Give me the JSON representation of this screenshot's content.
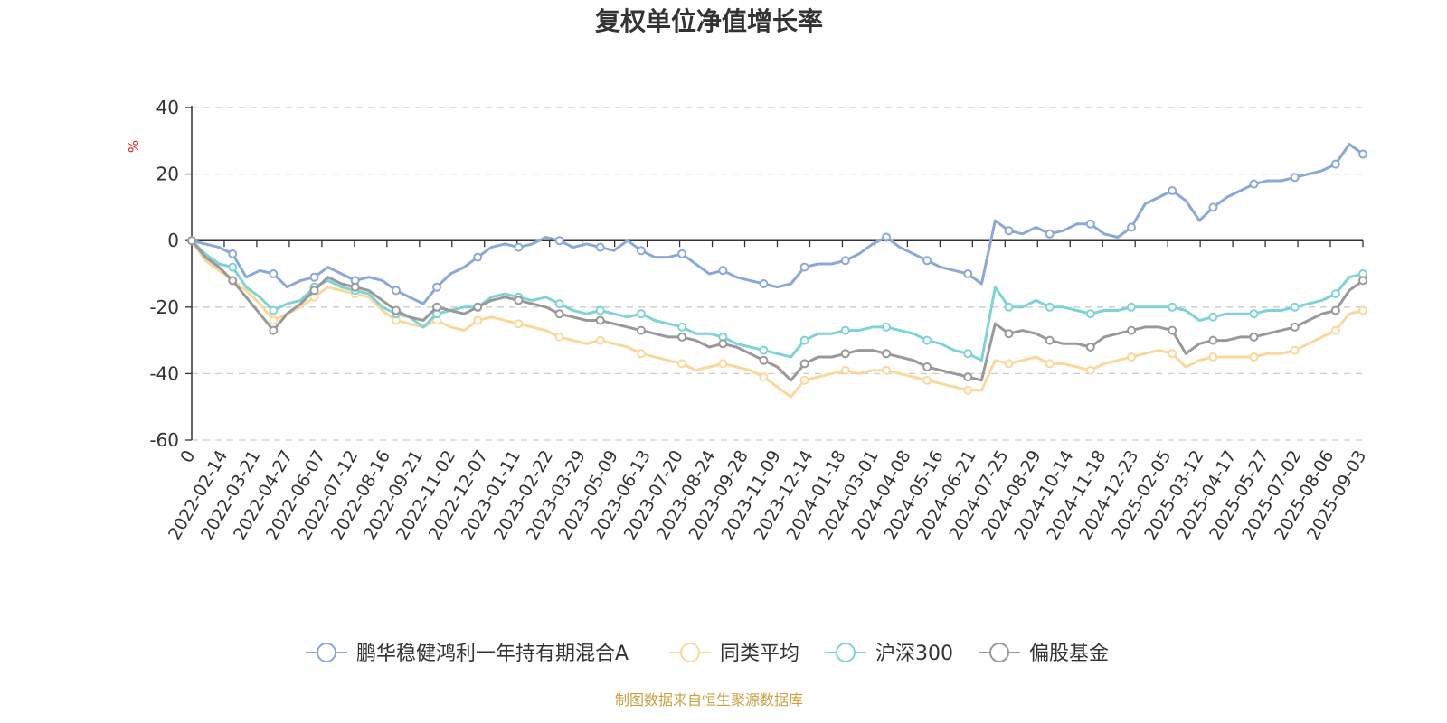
{
  "chart_data": {
    "type": "line",
    "title": "复权单位净值增长率",
    "ylabel": "%",
    "ylim": [
      -60,
      40
    ],
    "yticks": [
      "40",
      "20",
      "0",
      "-20",
      "-40",
      "-60"
    ],
    "xticks": [
      "0",
      "2022-02-14",
      "2022-03-21",
      "2022-04-27",
      "2022-06-07",
      "2022-07-12",
      "2022-08-16",
      "2022-09-21",
      "2022-11-02",
      "2022-12-07",
      "2023-01-11",
      "2023-02-22",
      "2023-03-29",
      "2023-05-09",
      "2023-06-13",
      "2023-07-20",
      "2023-08-24",
      "2023-09-28",
      "2023-11-09",
      "2023-12-14",
      "2024-01-18",
      "2024-03-01",
      "2024-04-08",
      "2024-05-16",
      "2024-06-21",
      "2024-07-25",
      "2024-08-29",
      "2024-10-14",
      "2024-11-18",
      "2024-12-23",
      "2025-02-05",
      "2025-03-12",
      "2025-04-17",
      "2025-05-27",
      "2025-07-02",
      "2025-08-06",
      "2025-09-03"
    ],
    "grid": true,
    "legend_position": "bottom",
    "series": [
      {
        "name": "鹏华稳健鸿利一年持有期混合A",
        "color": "#8aa8d8",
        "values": [
          0,
          -1,
          -2,
          -4,
          -11,
          -9,
          -10,
          -14,
          -12,
          -11,
          -8,
          -10,
          -12,
          -11,
          -12,
          -15,
          -17,
          -19,
          -14,
          -10,
          -8,
          -5,
          -2,
          -1,
          -2,
          -1,
          1,
          0,
          -2,
          -1,
          -2,
          -3,
          0,
          -3,
          -5,
          -5,
          -4,
          -7,
          -10,
          -9,
          -11,
          -12,
          -13,
          -14,
          -13,
          -8,
          -7,
          -7,
          -6,
          -4,
          -1,
          1,
          -2,
          -4,
          -6,
          -8,
          -9,
          -10,
          -13,
          6,
          3,
          2,
          4,
          2,
          3,
          5,
          5,
          2,
          1,
          4,
          11,
          13,
          15,
          12,
          6,
          10,
          13,
          15,
          17,
          18,
          18,
          19,
          20,
          21,
          23,
          29,
          26
        ]
      },
      {
        "name": "同类平均",
        "color": "#fbd89a",
        "values": [
          0,
          -6,
          -9,
          -12,
          -15,
          -19,
          -24,
          -22,
          -20,
          -17,
          -14,
          -15,
          -16,
          -17,
          -21,
          -24,
          -25,
          -26,
          -24,
          -26,
          -27,
          -24,
          -23,
          -24,
          -25,
          -26,
          -27,
          -29,
          -30,
          -31,
          -30,
          -31,
          -32,
          -34,
          -35,
          -36,
          -37,
          -39,
          -38,
          -37,
          -38,
          -39,
          -41,
          -44,
          -47,
          -42,
          -41,
          -40,
          -39,
          -40,
          -39,
          -39,
          -40,
          -41,
          -42,
          -43,
          -44,
          -45,
          -45,
          -36,
          -37,
          -36,
          -35,
          -37,
          -37,
          -38,
          -39,
          -37,
          -36,
          -35,
          -34,
          -33,
          -34,
          -38,
          -36,
          -35,
          -35,
          -35,
          -35,
          -34,
          -34,
          -33,
          -31,
          -29,
          -27,
          -22,
          -21
        ]
      },
      {
        "name": "沪深300",
        "color": "#7dd3d6",
        "values": [
          0,
          -4,
          -7,
          -8,
          -14,
          -17,
          -21,
          -19,
          -18,
          -14,
          -12,
          -14,
          -15,
          -16,
          -20,
          -22,
          -23,
          -26,
          -22,
          -21,
          -20,
          -20,
          -17,
          -16,
          -17,
          -18,
          -17,
          -19,
          -21,
          -22,
          -21,
          -22,
          -23,
          -22,
          -24,
          -25,
          -26,
          -28,
          -28,
          -29,
          -31,
          -32,
          -33,
          -34,
          -35,
          -30,
          -28,
          -28,
          -27,
          -27,
          -26,
          -26,
          -27,
          -28,
          -30,
          -31,
          -33,
          -34,
          -36,
          -14,
          -20,
          -20,
          -18,
          -20,
          -20,
          -21,
          -22,
          -21,
          -21,
          -20,
          -20,
          -20,
          -20,
          -21,
          -24,
          -23,
          -22,
          -22,
          -22,
          -21,
          -21,
          -20,
          -19,
          -18,
          -16,
          -11,
          -10
        ]
      },
      {
        "name": "偏股基金",
        "color": "#999999",
        "values": [
          0,
          -5,
          -8,
          -12,
          -17,
          -22,
          -27,
          -22,
          -19,
          -15,
          -11,
          -13,
          -14,
          -15,
          -18,
          -21,
          -23,
          -24,
          -20,
          -21,
          -22,
          -20,
          -18,
          -17,
          -18,
          -19,
          -20,
          -22,
          -23,
          -24,
          -24,
          -25,
          -26,
          -27,
          -28,
          -29,
          -29,
          -30,
          -32,
          -31,
          -32,
          -34,
          -36,
          -38,
          -42,
          -37,
          -35,
          -35,
          -34,
          -33,
          -33,
          -34,
          -35,
          -36,
          -38,
          -39,
          -40,
          -41,
          -42,
          -25,
          -28,
          -27,
          -28,
          -30,
          -31,
          -31,
          -32,
          -29,
          -28,
          -27,
          -26,
          -26,
          -27,
          -34,
          -31,
          -30,
          -30,
          -29,
          -29,
          -28,
          -27,
          -26,
          -24,
          -22,
          -21,
          -15,
          -12
        ]
      }
    ]
  },
  "source_text": "制图数据来自恒生聚源数据库",
  "source_color": "#c8a040",
  "unit_color": "#e02020"
}
